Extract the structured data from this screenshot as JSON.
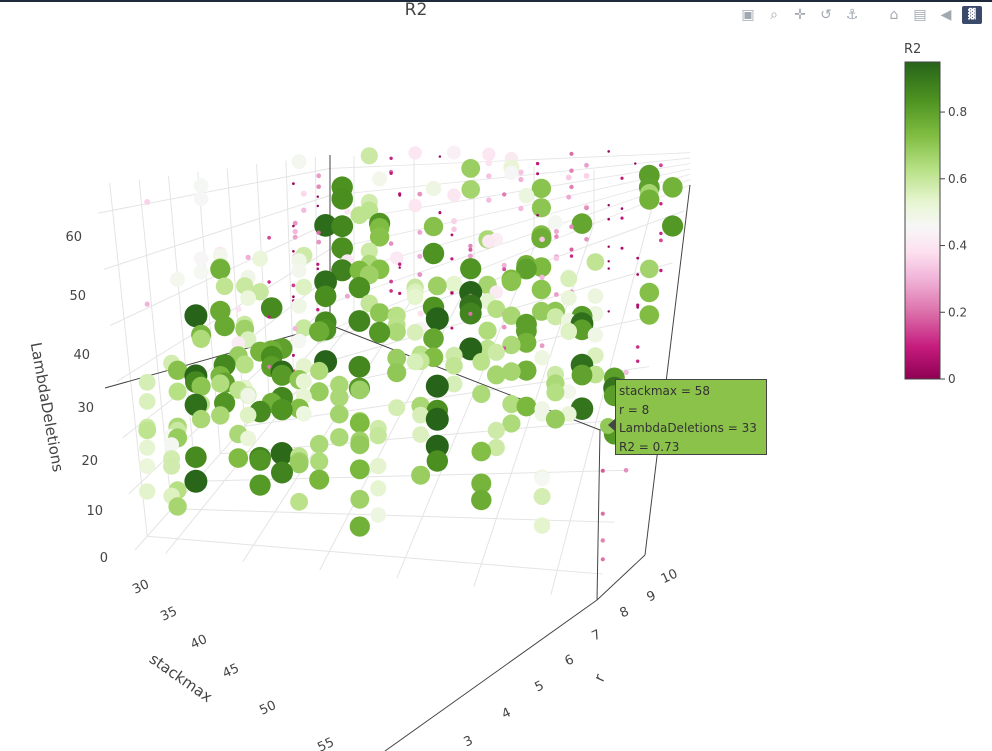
{
  "title": "R2",
  "modebar": [
    "camera-icon",
    "zoom-icon",
    "pan-icon",
    "orbit-icon",
    "turntable-icon",
    "home-icon",
    "reset-camera-icon",
    "hover-toggle-icon",
    "plotly-logo-icon"
  ],
  "tooltip": {
    "lines": [
      "stackmax = 58",
      "r = 8",
      "  LambdaDeletions = 33",
      " R2 = 0.73"
    ],
    "color": "#8bc34a"
  },
  "chart_data": {
    "type": "scatter3d",
    "title": "R2",
    "axes": {
      "x": {
        "label": "stackmax",
        "ticks": [
          "30",
          "35",
          "40",
          "45",
          "50",
          "55"
        ],
        "range": [
          28,
          58
        ]
      },
      "y": {
        "label": "r",
        "ticks": [
          "3",
          "4",
          "5",
          "6",
          "7",
          "8",
          "9",
          "10"
        ],
        "range": [
          2.5,
          10.5
        ]
      },
      "z": {
        "label": "LambdaDeletions",
        "ticks": [
          "0",
          "10",
          "20",
          "30",
          "40",
          "50",
          "60"
        ],
        "range": [
          0,
          65
        ]
      }
    },
    "colorbar": {
      "title": "R2",
      "ticks": [
        "0",
        "0.2",
        "0.4",
        "0.6",
        "0.8"
      ],
      "range": [
        0,
        0.95
      ],
      "colorscale": [
        "#8e0152",
        "#c51b7d",
        "#de77ae",
        "#f1b6da",
        "#fde0ef",
        "#f7f7f7",
        "#e6f5d0",
        "#b8e186",
        "#7fbc41",
        "#4d9221",
        "#276419"
      ]
    },
    "grid": true,
    "note_marker_size": "marker size increases with R2",
    "highlight": {
      "stackmax": 58,
      "r": 8,
      "LambdaDeletions": 33,
      "R2": 0.73
    }
  }
}
